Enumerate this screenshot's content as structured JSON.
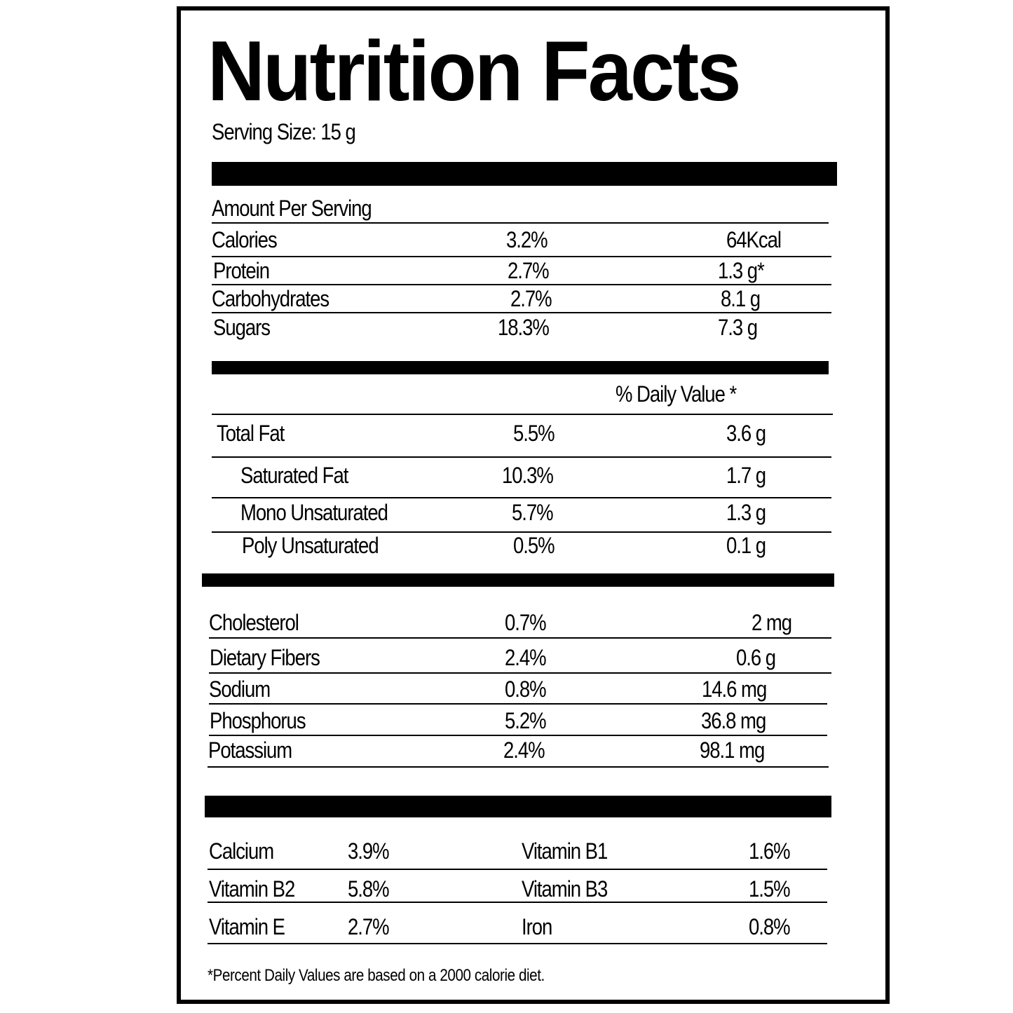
{
  "title": "Nutrition Facts",
  "serving_size": "Serving Size: 15 g",
  "amount_per_serving": "Amount Per Serving",
  "section1": [
    {
      "name": "Calories",
      "pct": "3.2%",
      "value": "64Kcal"
    },
    {
      "name": "Protein",
      "pct": "2.7%",
      "value": "1.3 g*"
    },
    {
      "name": "Carbohydrates",
      "pct": "2.7%",
      "value": "8.1 g"
    },
    {
      "name": "Sugars",
      "pct": "18.3%",
      "value": "7.3 g"
    }
  ],
  "daily_value_header": "% Daily Value *",
  "fats": [
    {
      "name": "Total Fat",
      "pct": "5.5%",
      "value": "3.6 g"
    },
    {
      "name": "Saturated Fat",
      "pct": "10.3%",
      "value": "1.7 g"
    },
    {
      "name": "Mono Unsaturated",
      "pct": "5.7%",
      "value": "1.3 g"
    },
    {
      "name": "Poly Unsaturated",
      "pct": "0.5%",
      "value": "0.1 g"
    }
  ],
  "minerals": [
    {
      "name": "Cholesterol",
      "pct": "0.7%",
      "value": "2 mg"
    },
    {
      "name": "Dietary Fibers",
      "pct": "2.4%",
      "value": "0.6 g"
    },
    {
      "name": "Sodium",
      "pct": "0.8%",
      "value": "14.6 mg"
    },
    {
      "name": "Phosphorus",
      "pct": "5.2%",
      "value": "36.8 mg"
    },
    {
      "name": "Potassium",
      "pct": "2.4%",
      "value": "98.1 mg"
    }
  ],
  "vitamins": [
    {
      "name1": "Calcium",
      "pct1": "3.9%",
      "name2": "Vitamin B1",
      "pct2": "1.6%"
    },
    {
      "name1": "Vitamin B2",
      "pct1": "5.8%",
      "name2": "Vitamin B3",
      "pct2": "1.5%"
    },
    {
      "name1": "Vitamin E",
      "pct1": "2.7%",
      "name2": "Iron",
      "pct2": "0.8%"
    }
  ],
  "footnote": "*Percent Daily Values are based on a 2000 calorie diet."
}
